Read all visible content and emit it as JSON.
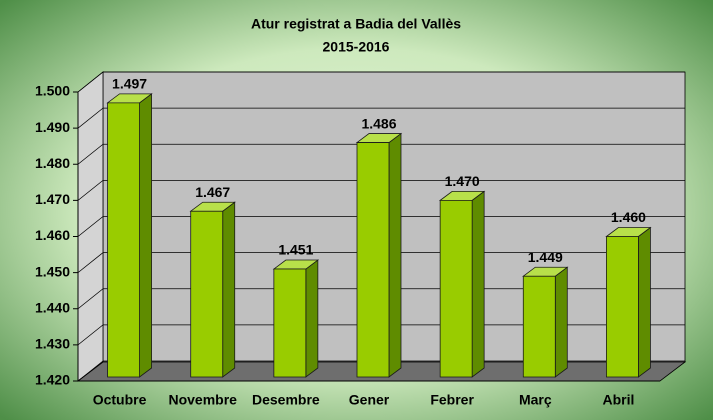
{
  "chart_data": {
    "type": "bar3d",
    "title": "Atur registrat a Badia del Vallès",
    "subtitle": "2015-2016",
    "categories": [
      "Octubre",
      "Novembre",
      "Desembre",
      "Gener",
      "Febrer",
      "Març",
      "Abril"
    ],
    "values": [
      1497,
      1467,
      1451,
      1486,
      1470,
      1449,
      1460
    ],
    "value_labels": [
      "1.497",
      "1.467",
      "1.451",
      "1.486",
      "1.470",
      "1.449",
      "1.460"
    ],
    "color": "#99cc00",
    "ylim": [
      1420,
      1500
    ],
    "yticks": [
      {
        "value": 1420,
        "label": "1.420"
      },
      {
        "value": 1430,
        "label": "1.430"
      },
      {
        "value": 1440,
        "label": "1.440"
      },
      {
        "value": 1450,
        "label": "1.450"
      },
      {
        "value": 1460,
        "label": "1.460"
      },
      {
        "value": 1470,
        "label": "1.470"
      },
      {
        "value": 1480,
        "label": "1.480"
      },
      {
        "value": 1490,
        "label": "1.490"
      },
      {
        "value": 1500,
        "label": "1.500"
      }
    ],
    "grid": true
  }
}
